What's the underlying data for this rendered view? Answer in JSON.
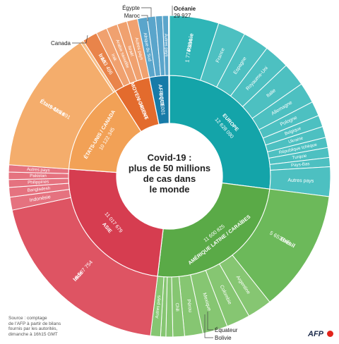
{
  "chart_data": {
    "type": "sunburst",
    "title_lines": [
      "Covid-19 :",
      "plus de 50 millions",
      "de cas dans",
      "le monde"
    ],
    "regions": [
      {
        "name": "EUROPE",
        "value": "12 628 090",
        "color": "#14a4a9",
        "children": [
          {
            "name": "Russie",
            "value": "1 774 334",
            "bold": true
          },
          {
            "name": "France"
          },
          {
            "name": "Espagne"
          },
          {
            "name": "Royaume-Uni"
          },
          {
            "name": "Italie"
          },
          {
            "name": "Allemagne"
          },
          {
            "name": "Pologne"
          },
          {
            "name": "Belgique"
          },
          {
            "name": "Ukraine"
          },
          {
            "name": "République tchèque"
          },
          {
            "name": "Turquie"
          },
          {
            "name": "Pays-Bas"
          },
          {
            "name": "Autres pays"
          }
        ]
      },
      {
        "name": "AMÉRIQUE LATINE / CARAÏBES",
        "value": "11 600 825",
        "color": "#5aaa47",
        "children": [
          {
            "name": "Brésil",
            "value": "5 653 561",
            "bold": true
          },
          {
            "name": "Argentine"
          },
          {
            "name": "Colombie"
          },
          {
            "name": "Mexique"
          },
          {
            "name": "Pérou"
          },
          {
            "name": "Chili"
          },
          {
            "name": "Équateur"
          },
          {
            "name": "Bolivie"
          },
          {
            "name": "Autres pays"
          }
        ]
      },
      {
        "name": "ASIE",
        "value": "11 017 679",
        "color": "#d63d50",
        "children": [
          {
            "name": "Inde",
            "value": "8 507 754",
            "bold": true
          },
          {
            "name": "Indonésie"
          },
          {
            "name": "Bangladesh"
          },
          {
            "name": "Philippines"
          },
          {
            "name": "Pakistan"
          },
          {
            "name": "Autres pays"
          }
        ]
      },
      {
        "name": "ÉTATS-UNIS / CANADA",
        "value": "10 122 345",
        "color": "#f2a156",
        "children": [
          {
            "name": "États-Unis",
            "value": "9 863 891",
            "bold": true
          },
          {
            "name": "Canada"
          }
        ]
      },
      {
        "name": "MOYEN-ORIENT",
        "value": "2 741 546",
        "color": "#e36b2d",
        "children": [
          {
            "name": "Iran",
            "value": "683 486",
            "bold": true
          },
          {
            "name": "Irak"
          },
          {
            "name": "Arabie saoudite"
          },
          {
            "name": "Israël"
          },
          {
            "name": "Autres pays"
          }
        ]
      },
      {
        "name": "AFRIQUE",
        "value": "1 870 001",
        "color": "#177ba8",
        "children": [
          {
            "name": "Afrique du Sud"
          },
          {
            "name": "Maroc"
          },
          {
            "name": "Égypte"
          },
          {
            "name": "Autres pays"
          }
        ]
      },
      {
        "name": "Océanie",
        "value": "29 927",
        "color": "#1d3b5c",
        "children": []
      }
    ]
  },
  "source_lines": [
    "Source : comptage",
    "de l'AFP à partir de bilans",
    "fournis par les autorités,",
    "dimanche à 16h15 GMT"
  ],
  "brand": "AFP",
  "colors": {
    "europe_outer": "#4dc0c1",
    "latam_outer": "#82c46c",
    "asie_outer": "#e4707e",
    "usa_outer": "#f7c089",
    "mo_outer": "#ee9a69",
    "afrique_outer": "#4a9dc4"
  }
}
